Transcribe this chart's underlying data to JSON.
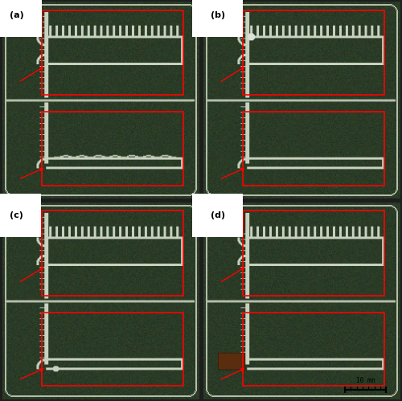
{
  "figure_width": 5.0,
  "figure_height": 4.99,
  "dpi": 100,
  "bg_dark": [
    42,
    58,
    38
  ],
  "bg_light": [
    160,
    175,
    150
  ],
  "border_color": [
    180,
    190,
    170
  ],
  "trace_color": [
    200,
    210,
    190
  ],
  "panel_labels": [
    "(a)",
    "(b)",
    "(c)",
    "(d)"
  ],
  "label_fontsize": 8,
  "label_color": "black",
  "label_bg": "white",
  "scalebar_text": "10 mm",
  "scalebar_fontsize": 5.5,
  "red_rect_color": "red",
  "arrow_color": "red",
  "tape_color": [
    90,
    45,
    15
  ],
  "figure_bg": [
    30,
    30,
    30
  ]
}
